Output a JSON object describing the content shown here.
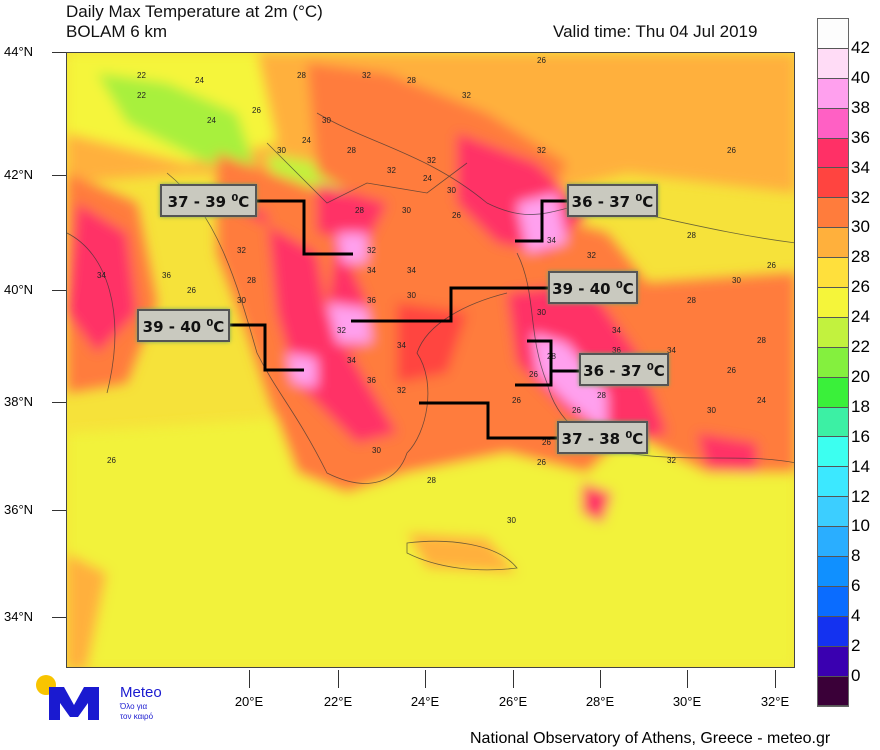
{
  "header": {
    "title": "Daily Max Temperature at 2m (°C)",
    "model": "BOLAM 6 km",
    "valid_time": "Valid time: Thu 04 Jul 2019"
  },
  "lat_labels": [
    "44°N",
    "42°N",
    "40°N",
    "38°N",
    "36°N",
    "34°N"
  ],
  "lon_labels": [
    "20°E",
    "22°E",
    "24°E",
    "26°E",
    "28°E",
    "30°E",
    "32°E"
  ],
  "colorbar": {
    "labels": [
      "42",
      "40",
      "38",
      "36",
      "34",
      "32",
      "30",
      "28",
      "26",
      "24",
      "22",
      "20",
      "18",
      "16",
      "14",
      "12",
      "10",
      "8",
      "6",
      "4",
      "2",
      "0"
    ],
    "colors": [
      "#fdfdfd",
      "#ffdcf6",
      "#ffa0ee",
      "#ff60c4",
      "#ff3066",
      "#ff4440",
      "#ff7c3c",
      "#ffb03c",
      "#ffe03c",
      "#f5f53a",
      "#c2f23e",
      "#84f03e",
      "#3af03a",
      "#3cf0a4",
      "#3cfff0",
      "#3ce8ff",
      "#3cceff",
      "#2aaeff",
      "#1090ff",
      "#0a6cff",
      "#1432f0",
      "#3a00b0",
      "#3a0038"
    ]
  },
  "callouts": [
    {
      "text": "37 - 39",
      "unit": "0C"
    },
    {
      "text": "39 - 40",
      "unit": "0C"
    },
    {
      "text": "36 - 37",
      "unit": "0C"
    },
    {
      "text": "39 - 40",
      "unit": "0C"
    },
    {
      "text": "36 - 37",
      "unit": "0C"
    },
    {
      "text": "37 - 38",
      "unit": "0C"
    }
  ],
  "contour_labels": [
    "22",
    "24",
    "22",
    "24",
    "28",
    "32",
    "28",
    "32",
    "30",
    "26",
    "30",
    "24",
    "28",
    "32",
    "32",
    "30",
    "26",
    "32",
    "24",
    "26",
    "30",
    "28",
    "32",
    "34",
    "36",
    "34",
    "30",
    "32",
    "34",
    "36",
    "34",
    "32",
    "30",
    "28",
    "26",
    "26",
    "28",
    "30",
    "32",
    "34",
    "36",
    "34",
    "30",
    "32",
    "34",
    "36",
    "34",
    "30",
    "28",
    "26",
    "26",
    "28",
    "30",
    "32",
    "28",
    "26",
    "26",
    "28",
    "26",
    "26",
    "28",
    "26",
    "24",
    "30",
    "26"
  ],
  "logo": {
    "brand": "Meteo",
    "tagline1": "Όλο για",
    "tagline2": "τον καιρό"
  },
  "footer": "National Observatory of Athens, Greece - meteo.gr"
}
